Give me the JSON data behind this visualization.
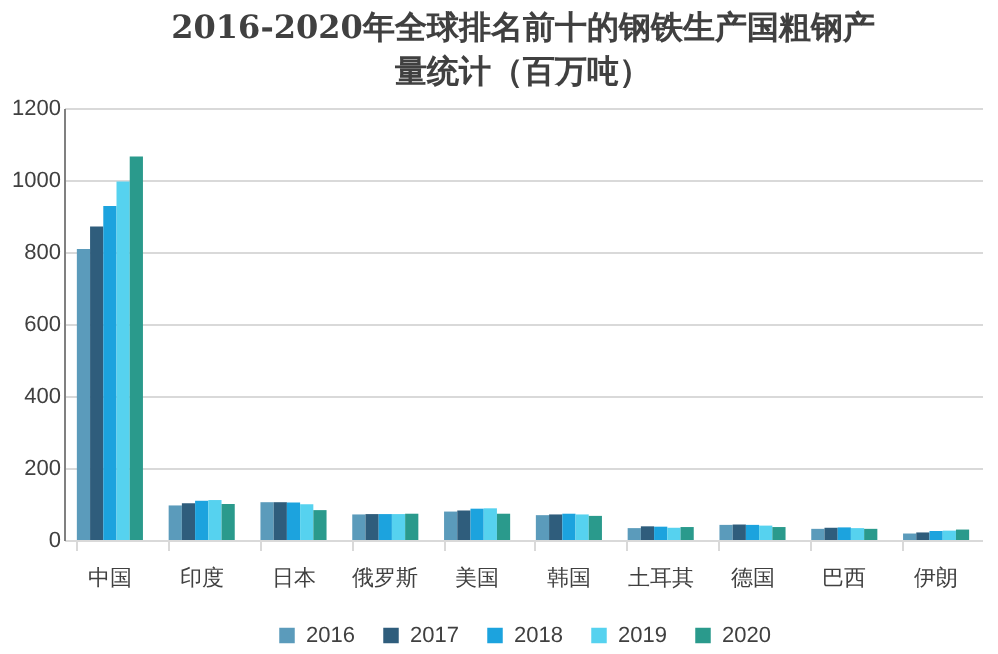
{
  "chart_data": {
    "type": "bar",
    "title": "2016-2020年全球排名前十的钢铁生产国粗钢产量统计（百万吨）",
    "categories": [
      "中国",
      "印度",
      "日本",
      "俄罗斯",
      "美国",
      "韩国",
      "土耳其",
      "德国",
      "巴西",
      "伊朗"
    ],
    "series": [
      {
        "name": "2016",
        "color": "#5b9bbb",
        "values": [
          808,
          96,
          105,
          71,
          79,
          69,
          33,
          42,
          31,
          18
        ]
      },
      {
        "name": "2017",
        "color": "#2f5d7c",
        "values": [
          871,
          102,
          105,
          72,
          82,
          71,
          38,
          43,
          34,
          21
        ]
      },
      {
        "name": "2018",
        "color": "#1ca3de",
        "values": [
          928,
          109,
          104,
          72,
          87,
          73,
          37,
          42,
          35,
          25
        ]
      },
      {
        "name": "2019",
        "color": "#56d2ef",
        "values": [
          996,
          111,
          99,
          72,
          88,
          71,
          34,
          40,
          33,
          26
        ]
      },
      {
        "name": "2020",
        "color": "#2a9a8c",
        "values": [
          1065,
          100,
          83,
          73,
          73,
          67,
          36,
          36,
          31,
          29
        ]
      }
    ],
    "ylim": [
      0,
      1200
    ],
    "yticks": [
      0,
      200,
      400,
      600,
      800,
      1000,
      1200
    ],
    "grid": "y",
    "legend": "bottom"
  }
}
